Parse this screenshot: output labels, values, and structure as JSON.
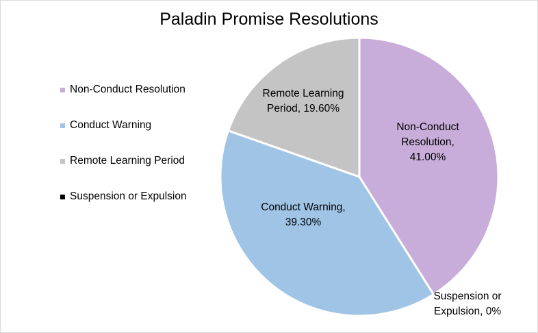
{
  "chart_data": {
    "type": "pie",
    "title": "Paladin Promise Resolutions",
    "legend_position": "left",
    "slices": [
      {
        "label": "Non-Conduct Resolution",
        "value": 41.0,
        "color": "#c8acd9",
        "data_label": [
          "Non-Conduct",
          "Resolution,",
          "41.00%"
        ]
      },
      {
        "label": "Conduct Warning",
        "value": 39.3,
        "color": "#9fc4e6",
        "data_label": [
          "Conduct Warning,",
          "39.30%"
        ]
      },
      {
        "label": "Remote Learning Period",
        "value": 19.6,
        "color": "#c4c4c4",
        "data_label": [
          "Remote Learning",
          "Period, 19.60%"
        ]
      },
      {
        "label": "Suspension or Expulsion",
        "value": 0,
        "color": "#000000",
        "data_label": [
          "Suspension or",
          "Expulsion, 0%"
        ]
      }
    ]
  }
}
